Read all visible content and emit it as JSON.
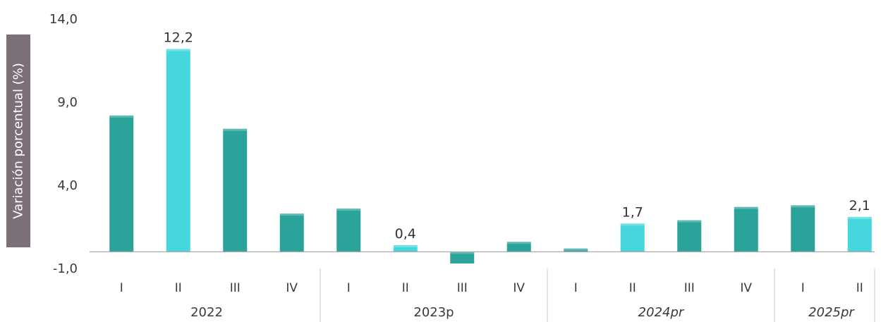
{
  "chart_data": {
    "type": "bar",
    "ylabel": "Variación porcentual (%)",
    "ylim": [
      -1.0,
      14.0
    ],
    "yticks": [
      "14,0",
      "9,0",
      "4,0",
      "-1,0"
    ],
    "ytick_values": [
      14.0,
      9.0,
      4.0,
      -1.0
    ],
    "grid": false,
    "groups": [
      {
        "year": "2022",
        "italic": false,
        "quarters": [
          "I",
          "II",
          "III",
          "IV"
        ],
        "values": [
          8.2,
          12.2,
          7.4,
          2.3
        ],
        "highlight": [
          false,
          true,
          false,
          false
        ],
        "labels": [
          "",
          "12,2",
          "",
          ""
        ]
      },
      {
        "year": "2023p",
        "italic": false,
        "quarters": [
          "I",
          "II",
          "III",
          "IV"
        ],
        "values": [
          2.6,
          0.4,
          -0.7,
          0.6
        ],
        "highlight": [
          false,
          true,
          false,
          false
        ],
        "labels": [
          "",
          "0,4",
          "",
          ""
        ]
      },
      {
        "year": "2024pr",
        "italic": true,
        "quarters": [
          "I",
          "II",
          "III",
          "IV"
        ],
        "values": [
          0.2,
          1.7,
          1.9,
          2.7
        ],
        "highlight": [
          false,
          true,
          false,
          false
        ],
        "labels": [
          "",
          "1,7",
          "",
          ""
        ]
      },
      {
        "year": "2025pr",
        "italic": true,
        "quarters": [
          "I",
          "II"
        ],
        "values": [
          2.8,
          2.1
        ],
        "highlight": [
          false,
          true
        ],
        "labels": [
          "",
          "2,1"
        ]
      }
    ],
    "colors": {
      "bar": "#2aa39a",
      "bar_highlight": "#45d6de",
      "ylabel_bg": "#7b6f78",
      "axis": "#aaaaaa"
    }
  }
}
